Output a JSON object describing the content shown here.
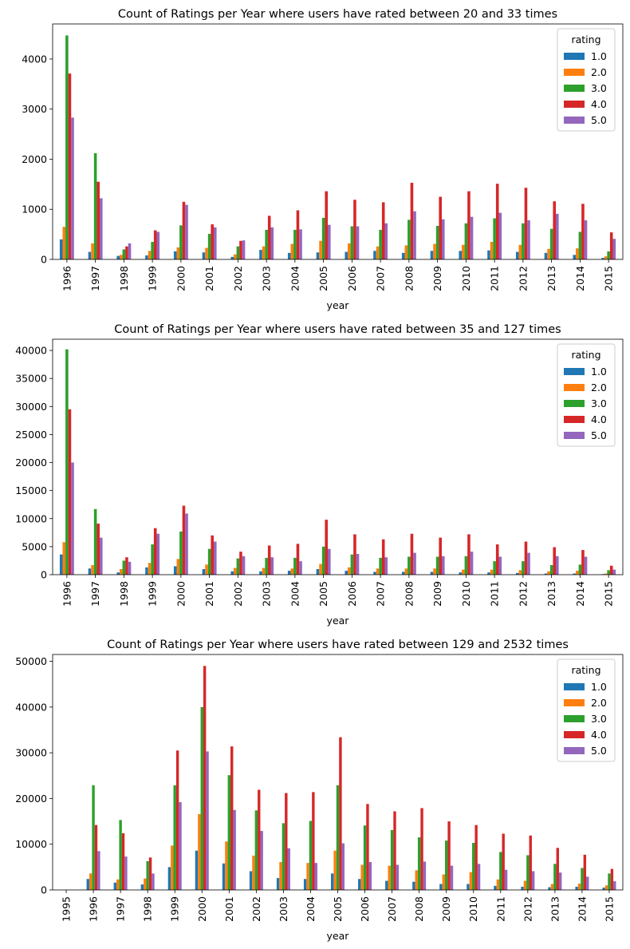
{
  "chart_data": [
    {
      "type": "bar",
      "title": "Count of Ratings per Year where users have rated between 20 and 33 times",
      "xlabel": "year",
      "ylabel": "",
      "ylim": [
        0,
        4700
      ],
      "yticks": [
        0,
        1000,
        2000,
        3000,
        4000
      ],
      "legend_title": "rating",
      "legend_position": "top-right",
      "grid": false,
      "categories": [
        "1996",
        "1997",
        "1998",
        "1999",
        "2000",
        "2001",
        "2002",
        "2003",
        "2004",
        "2005",
        "2006",
        "2007",
        "2008",
        "2009",
        "2010",
        "2011",
        "2012",
        "2013",
        "2014",
        "2015"
      ],
      "series": [
        {
          "name": "1.0",
          "color": "#1f77b4",
          "values": [
            400,
            150,
            70,
            80,
            160,
            140,
            50,
            190,
            130,
            140,
            150,
            170,
            130,
            170,
            170,
            180,
            150,
            130,
            90,
            30
          ]
        },
        {
          "name": "2.0",
          "color": "#ff7f0e",
          "values": [
            650,
            320,
            90,
            170,
            240,
            230,
            100,
            260,
            310,
            370,
            320,
            260,
            280,
            310,
            290,
            350,
            290,
            210,
            220,
            60
          ]
        },
        {
          "name": "3.0",
          "color": "#2ca02c",
          "values": [
            4470,
            2120,
            200,
            350,
            680,
            510,
            260,
            590,
            590,
            830,
            660,
            590,
            790,
            670,
            720,
            820,
            720,
            610,
            550,
            160
          ]
        },
        {
          "name": "4.0",
          "color": "#d62728",
          "values": [
            3710,
            1550,
            260,
            580,
            1150,
            700,
            370,
            870,
            980,
            1360,
            1190,
            1140,
            1530,
            1250,
            1360,
            1510,
            1430,
            1160,
            1110,
            540
          ]
        },
        {
          "name": "5.0",
          "color": "#9467bd",
          "values": [
            2830,
            1220,
            320,
            550,
            1090,
            640,
            380,
            640,
            600,
            690,
            660,
            720,
            960,
            800,
            850,
            930,
            780,
            910,
            780,
            410
          ]
        }
      ]
    },
    {
      "type": "bar",
      "title": "Count of Ratings per Year where users have rated between 35 and 127 times",
      "xlabel": "year",
      "ylabel": "",
      "ylim": [
        0,
        42000
      ],
      "yticks": [
        0,
        5000,
        10000,
        15000,
        20000,
        25000,
        30000,
        35000,
        40000
      ],
      "legend_title": "rating",
      "legend_position": "top-right",
      "grid": false,
      "categories": [
        "1996",
        "1997",
        "1998",
        "1999",
        "2000",
        "2001",
        "2002",
        "2003",
        "2004",
        "2005",
        "2006",
        "2007",
        "2008",
        "2009",
        "2010",
        "2011",
        "2012",
        "2013",
        "2014",
        "2015"
      ],
      "series": [
        {
          "name": "1.0",
          "color": "#1f77b4",
          "values": [
            3600,
            1100,
            400,
            1300,
            1500,
            1000,
            600,
            600,
            700,
            1000,
            700,
            500,
            500,
            500,
            400,
            400,
            300,
            200,
            200,
            100
          ]
        },
        {
          "name": "2.0",
          "color": "#ff7f0e",
          "values": [
            5800,
            1700,
            1000,
            2100,
            2800,
            1800,
            1200,
            1200,
            1100,
            1900,
            1300,
            1100,
            1100,
            1100,
            900,
            900,
            800,
            600,
            700,
            200
          ]
        },
        {
          "name": "3.0",
          "color": "#2ca02c",
          "values": [
            40200,
            11700,
            2500,
            5400,
            7700,
            4600,
            2900,
            3000,
            3000,
            5000,
            3600,
            3000,
            3200,
            3200,
            3300,
            2400,
            2400,
            1700,
            1800,
            800
          ]
        },
        {
          "name": "4.0",
          "color": "#d62728",
          "values": [
            29500,
            9100,
            3100,
            8300,
            12300,
            7000,
            4100,
            5200,
            5500,
            9800,
            7200,
            6300,
            7300,
            6600,
            7200,
            5400,
            5900,
            4900,
            4400,
            1600
          ]
        },
        {
          "name": "5.0",
          "color": "#9467bd",
          "values": [
            20000,
            6600,
            2300,
            7300,
            10900,
            5900,
            3300,
            3100,
            2400,
            4600,
            3700,
            3100,
            3900,
            3300,
            4100,
            3200,
            3900,
            3300,
            3200,
            900
          ]
        }
      ]
    },
    {
      "type": "bar",
      "title": "Count of Ratings per Year where users have rated between 129 and 2532 times",
      "xlabel": "year",
      "ylabel": "",
      "ylim": [
        0,
        51500
      ],
      "yticks": [
        0,
        10000,
        20000,
        30000,
        40000,
        50000
      ],
      "legend_title": "rating",
      "legend_position": "top-right",
      "grid": false,
      "categories": [
        "1995",
        "1996",
        "1997",
        "1998",
        "1999",
        "2000",
        "2001",
        "2002",
        "2003",
        "2004",
        "2005",
        "2006",
        "2007",
        "2008",
        "2009",
        "2010",
        "2011",
        "2012",
        "2013",
        "2014",
        "2015"
      ],
      "series": [
        {
          "name": "1.0",
          "color": "#1f77b4",
          "values": [
            0,
            2400,
            1600,
            1200,
            5000,
            8600,
            5800,
            4100,
            2600,
            2400,
            3600,
            2400,
            2000,
            1800,
            1300,
            1300,
            900,
            700,
            600,
            700,
            500
          ]
        },
        {
          "name": "2.0",
          "color": "#ff7f0e",
          "values": [
            0,
            3600,
            2300,
            2500,
            9700,
            16600,
            10600,
            7500,
            6100,
            5900,
            8600,
            5500,
            5300,
            4300,
            3400,
            3900,
            2300,
            2000,
            1300,
            1400,
            1000
          ]
        },
        {
          "name": "3.0",
          "color": "#2ca02c",
          "values": [
            0,
            22900,
            15300,
            6300,
            22900,
            40000,
            25100,
            17400,
            14600,
            15100,
            22900,
            14100,
            13100,
            11500,
            10800,
            10300,
            8300,
            7600,
            5700,
            4800,
            3600
          ]
        },
        {
          "name": "4.0",
          "color": "#d62728",
          "values": [
            0,
            14200,
            12400,
            7100,
            30500,
            49000,
            31400,
            21900,
            21200,
            21400,
            33400,
            18800,
            17200,
            17900,
            15000,
            14200,
            12300,
            11900,
            9200,
            7700,
            4600
          ]
        },
        {
          "name": "5.0",
          "color": "#9467bd",
          "values": [
            0,
            8500,
            7300,
            3600,
            19200,
            30300,
            17500,
            12900,
            9100,
            5900,
            10200,
            6100,
            5500,
            6200,
            5300,
            5700,
            4400,
            4100,
            3800,
            2900,
            1900
          ]
        }
      ]
    }
  ]
}
